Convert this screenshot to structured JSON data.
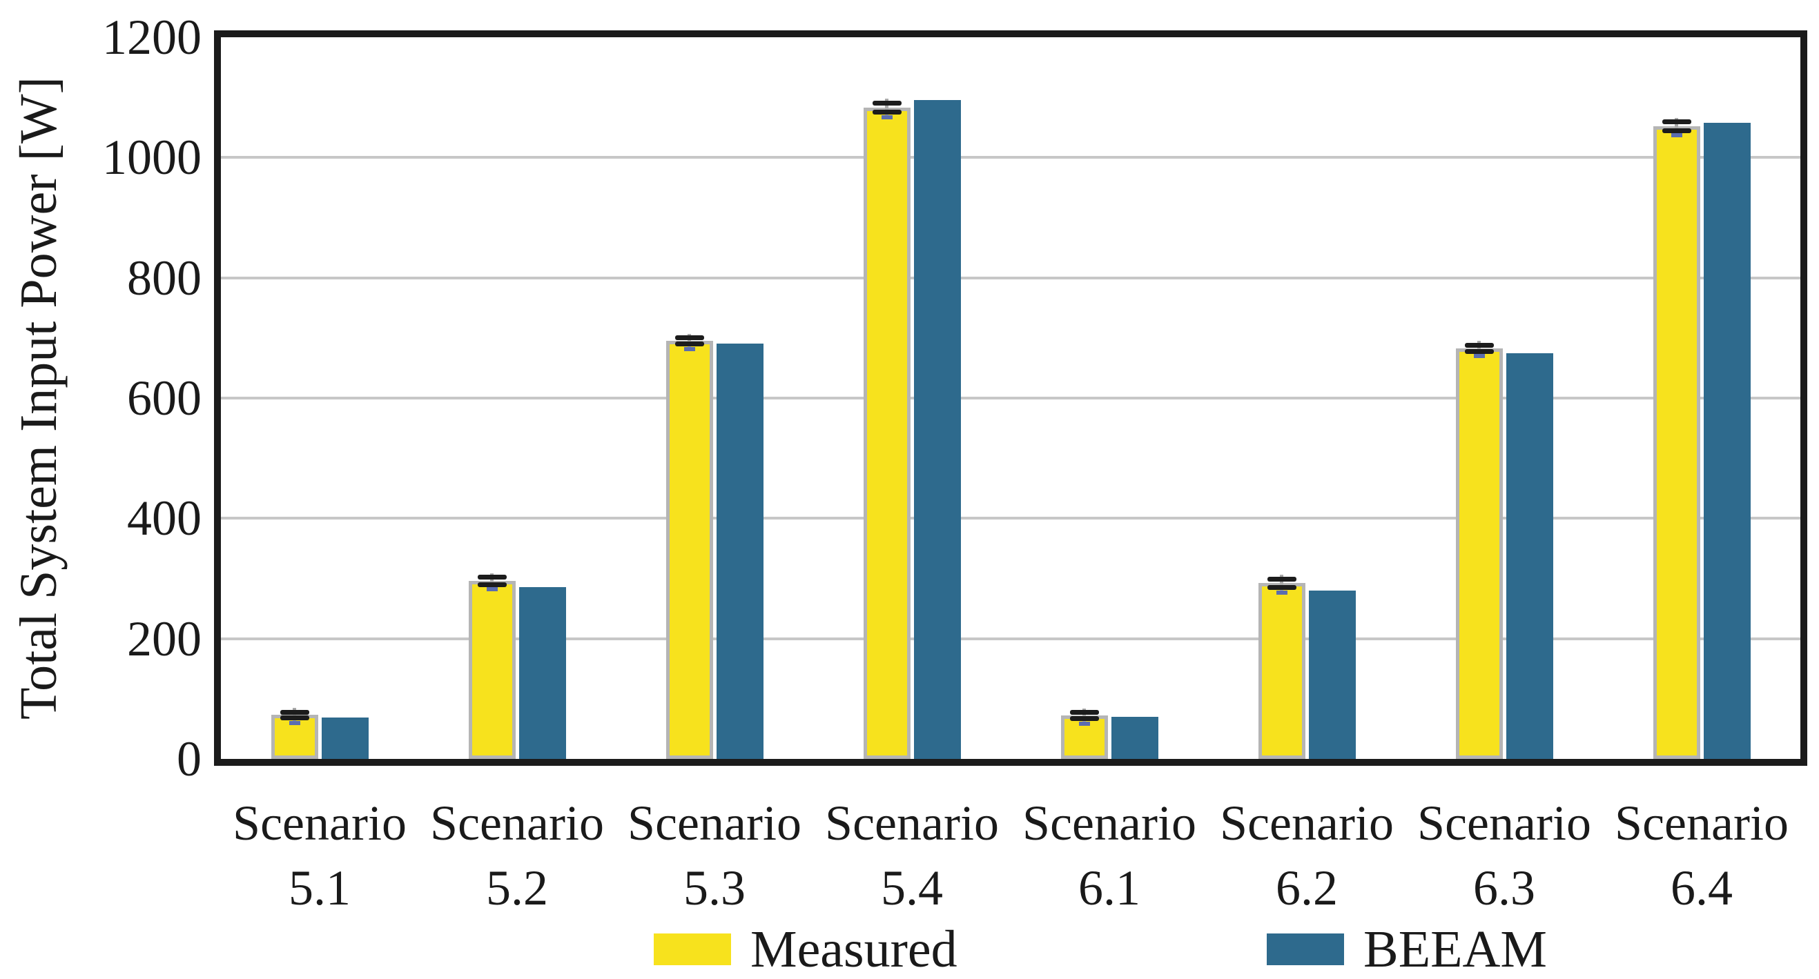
{
  "chart_data": {
    "type": "bar",
    "title": "",
    "xlabel": "",
    "ylabel": "Total System Input Power [W]",
    "ylim": [
      0,
      1200
    ],
    "yticks": [
      0,
      200,
      400,
      600,
      800,
      1000,
      1200
    ],
    "grid": true,
    "legend_position": "bottom",
    "categories": [
      "Scenario 5.1",
      "Scenario 5.2",
      "Scenario 5.3",
      "Scenario 5.4",
      "Scenario 6.1",
      "Scenario 6.2",
      "Scenario 6.3",
      "Scenario 6.4"
    ],
    "series": [
      {
        "name": "Measured",
        "color": "#f7e21d",
        "edge_color": "#b5b5b5",
        "values": [
          73,
          296,
          695,
          1083,
          72,
          292,
          683,
          1052
        ],
        "errors": [
          5,
          6,
          5,
          8,
          5,
          7,
          5,
          7
        ]
      },
      {
        "name": "BEEAM",
        "color": "#2e6a8d",
        "values": [
          69,
          286,
          691,
          1096,
          70,
          280,
          675,
          1058
        ]
      }
    ],
    "colors": {
      "frame": "#1b1b1b",
      "gridline": "#c7c7c7",
      "error_bar": "#1c1c1c",
      "background": "#ffffff"
    }
  }
}
